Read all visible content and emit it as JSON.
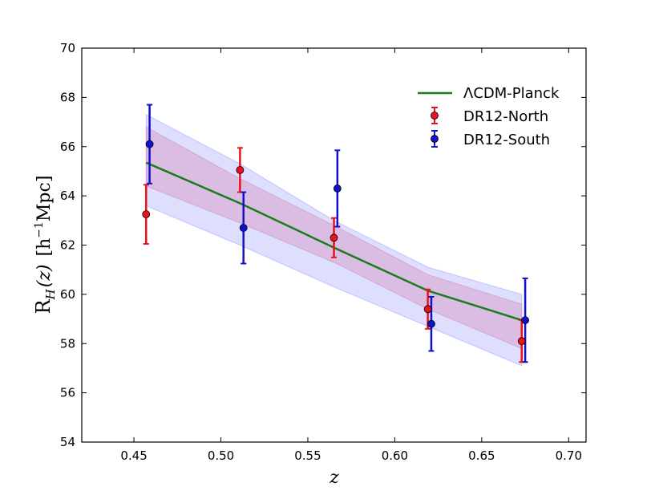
{
  "chart_data": {
    "type": "scatter",
    "title": "",
    "xlabel": "z",
    "ylabel": "R_H(z) [h^-1 Mpc]",
    "ylabel_parts": {
      "sym": "R",
      "sub": "H",
      "arg": "(z)",
      "unit_pre": "[h",
      "unit_sup": "−1",
      "unit_post": "Mpc]"
    },
    "xlim": [
      0.42,
      0.71
    ],
    "ylim": [
      54,
      70
    ],
    "xticks": [
      0.45,
      0.5,
      0.55,
      0.6,
      0.65,
      0.7
    ],
    "xtick_labels": [
      "0.45",
      "0.50",
      "0.55",
      "0.60",
      "0.65",
      "0.70"
    ],
    "yticks": [
      54,
      56,
      58,
      60,
      62,
      64,
      66,
      68,
      70
    ],
    "ytick_labels": [
      "54",
      "56",
      "58",
      "60",
      "62",
      "64",
      "66",
      "68",
      "70"
    ],
    "model": {
      "name": "ΛCDM-Planck",
      "color": "#1a7d1a",
      "x": [
        0.457,
        0.511,
        0.565,
        0.619,
        0.673
      ],
      "y": [
        65.35,
        63.7,
        61.9,
        60.15,
        58.95
      ],
      "band_inner_low": [
        64.4,
        62.9,
        61.3,
        59.4,
        57.8
      ],
      "band_inner_high": [
        66.8,
        64.7,
        62.8,
        60.8,
        59.6
      ],
      "band_outer_low": [
        63.6,
        62.0,
        60.3,
        58.7,
        57.1
      ],
      "band_outer_high": [
        67.3,
        65.3,
        63.0,
        61.1,
        60.0
      ],
      "inner_color": "#d9a0cc",
      "outer_color": "#c2c2ff"
    },
    "series": [
      {
        "name": "DR12-North",
        "color": "#e8141b",
        "x": [
          0.457,
          0.511,
          0.565,
          0.619,
          0.673
        ],
        "y": [
          63.25,
          65.05,
          62.3,
          59.4,
          58.1
        ],
        "yerr": [
          1.2,
          0.9,
          0.8,
          0.8,
          0.85
        ]
      },
      {
        "name": "DR12-South",
        "color": "#1111cc",
        "x": [
          0.459,
          0.513,
          0.567,
          0.621,
          0.675
        ],
        "y": [
          66.1,
          62.7,
          64.3,
          58.8,
          58.95
        ],
        "yerr": [
          1.6,
          1.45,
          1.55,
          1.1,
          1.7
        ]
      }
    ],
    "legend_position": "upper-right"
  }
}
